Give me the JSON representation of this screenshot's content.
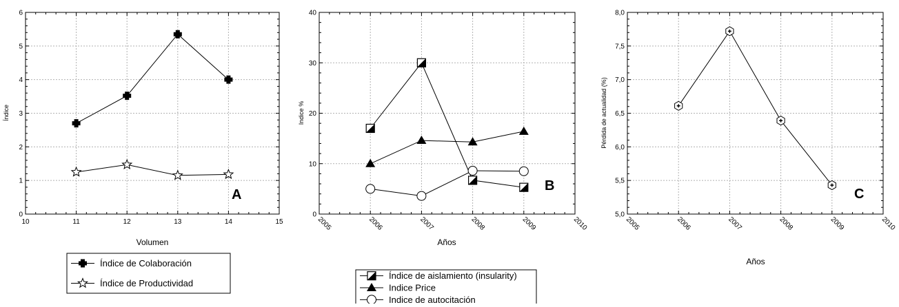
{
  "chart_data": [
    {
      "type": "line",
      "panel": "A",
      "xlabel": "Volumen",
      "ylabel": "Índice",
      "xlim": [
        10,
        15
      ],
      "ylim": [
        0,
        6
      ],
      "xticks": [
        10,
        11,
        12,
        13,
        14,
        15
      ],
      "yticks": [
        0,
        1,
        2,
        3,
        4,
        5,
        6
      ],
      "xtick_labels": [
        "10",
        "11",
        "12",
        "13",
        "14",
        "15"
      ],
      "ytick_labels": [
        "0",
        "1",
        "2",
        "3",
        "4",
        "5",
        "6"
      ],
      "grid": true,
      "legend_position": "bottom",
      "series": [
        {
          "name": "Índice de Colaboración",
          "marker": "cross",
          "x": [
            11,
            12,
            13,
            14
          ],
          "y": [
            2.7,
            3.52,
            5.35,
            4.0
          ]
        },
        {
          "name": "Índice de Productividad",
          "marker": "star",
          "x": [
            11,
            12,
            13,
            14
          ],
          "y": [
            1.25,
            1.47,
            1.15,
            1.18
          ]
        }
      ]
    },
    {
      "type": "line",
      "panel": "B",
      "xlabel": "Años",
      "ylabel": "Indice %",
      "xlim": [
        2005,
        2010
      ],
      "ylim": [
        0,
        40
      ],
      "xticks": [
        2005,
        2006,
        2007,
        2008,
        2009,
        2010
      ],
      "yticks": [
        0,
        10,
        20,
        30,
        40
      ],
      "xtick_labels": [
        "2005",
        "2006",
        "2007",
        "2008",
        "2009",
        "2010"
      ],
      "ytick_labels": [
        "0",
        "10",
        "20",
        "30",
        "40"
      ],
      "grid": true,
      "legend_position": "bottom",
      "series": [
        {
          "name": "Índice de aislamiento (insularity)",
          "marker": "half-square",
          "x": [
            2006,
            2007,
            2008,
            2009
          ],
          "y": [
            17.0,
            30.0,
            6.7,
            5.3
          ]
        },
        {
          "name": "Indice Price",
          "marker": "triangle",
          "x": [
            2006,
            2007,
            2008,
            2009
          ],
          "y": [
            10.0,
            14.6,
            14.3,
            16.4
          ]
        },
        {
          "name": "Indice de autocitación",
          "marker": "circle",
          "x": [
            2006,
            2007,
            2008,
            2009
          ],
          "y": [
            5.0,
            3.6,
            8.6,
            8.5
          ]
        }
      ]
    },
    {
      "type": "line",
      "panel": "C",
      "xlabel": "Años",
      "ylabel": "Pérdida de actualidad (%)",
      "xlim": [
        2005,
        2010
      ],
      "ylim": [
        5.0,
        8.0
      ],
      "xticks": [
        2005,
        2006,
        2007,
        2008,
        2009,
        2010
      ],
      "yticks": [
        5.0,
        5.5,
        6.0,
        6.5,
        7.0,
        7.5,
        8.0
      ],
      "xtick_labels": [
        "2005",
        "2006",
        "2007",
        "2008",
        "2009",
        "2010"
      ],
      "ytick_labels": [
        "5,0",
        "5,5",
        "6,0",
        "6,5",
        "7,0",
        "7,5",
        "8,0"
      ],
      "grid": true,
      "series": [
        {
          "marker": "hexagon-plus",
          "x": [
            2006,
            2007,
            2008,
            2009
          ],
          "y": [
            6.61,
            7.72,
            6.39,
            5.43
          ]
        }
      ]
    }
  ]
}
